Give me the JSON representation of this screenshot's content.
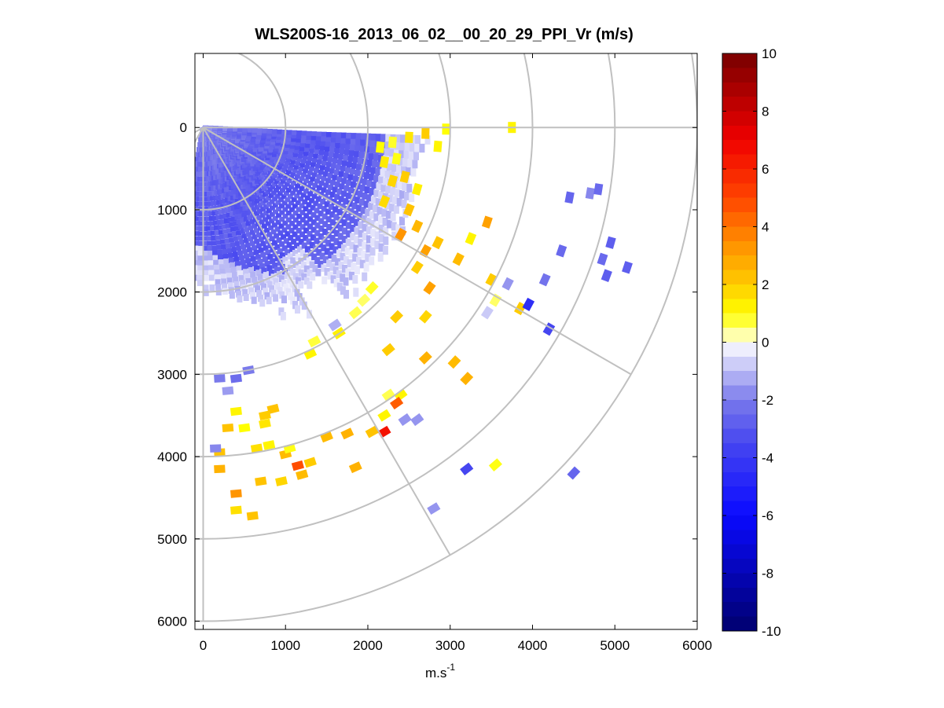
{
  "chart_data": {
    "type": "heatmap",
    "subtype": "polar-ppi-scan",
    "title": "WLS200S-16_2013_06_02__00_20_29_PPI_Vr (m/s)",
    "xlabel": "m.s",
    "xlabel_superscript": "-1",
    "ylabel": "",
    "xlim": [
      -100,
      6000
    ],
    "ylim": [
      -900,
      6100
    ],
    "y_axis_inverted": true,
    "x_ticks": [
      0,
      1000,
      2000,
      3000,
      4000,
      5000,
      6000
    ],
    "y_ticks": [
      0,
      1000,
      2000,
      3000,
      4000,
      5000,
      6000
    ],
    "grid": true,
    "polar_grid": {
      "origin": [
        0,
        0
      ],
      "ring_radii": [
        1000,
        2000,
        3000,
        4000,
        5000,
        6000
      ],
      "spoke_angles_deg": [
        -60,
        -30,
        0,
        30,
        60,
        90
      ]
    },
    "colorbar": {
      "label": "Vr (m/s)",
      "min": -10,
      "max": 10,
      "ticks": [
        10,
        8,
        6,
        4,
        2,
        0,
        -2,
        -4,
        -6,
        -8,
        -10
      ],
      "colormap": "blue-white-yellow-red",
      "colormap_stops": [
        {
          "v": -10,
          "color": "#00006e"
        },
        {
          "v": -6,
          "color": "#0a0aff"
        },
        {
          "v": -3.5,
          "color": "#4646f0"
        },
        {
          "v": -2,
          "color": "#7a7aeb"
        },
        {
          "v": 0,
          "color": "#ffffff"
        },
        {
          "v": 0.4,
          "color": "#ffff7a"
        },
        {
          "v": 1,
          "color": "#ffff00"
        },
        {
          "v": 2,
          "color": "#ffcc00"
        },
        {
          "v": 3.5,
          "color": "#ff8c00"
        },
        {
          "v": 5,
          "color": "#ff4400"
        },
        {
          "v": 7,
          "color": "#f00000"
        },
        {
          "v": 10,
          "color": "#780000"
        }
      ]
    },
    "dense_sector": {
      "range_min": 0,
      "range_max": 2850,
      "azimuth_start_deg": -10,
      "azimuth_end_deg": 87,
      "min_velocity": -3.3,
      "edge_velocity": -0.3
    },
    "cells": [
      [
        2150,
        240,
        1.0
      ],
      [
        2300,
        180,
        0.8
      ],
      [
        2500,
        120,
        1.5
      ],
      [
        2700,
        70,
        2.0
      ],
      [
        2850,
        230,
        1.2
      ],
      [
        2950,
        20,
        1.0
      ],
      [
        2200,
        420,
        1.4
      ],
      [
        2350,
        380,
        0.9
      ],
      [
        2450,
        600,
        2.0
      ],
      [
        2600,
        750,
        1.3
      ],
      [
        2300,
        650,
        1.8
      ],
      [
        2200,
        900,
        1.7
      ],
      [
        2500,
        1000,
        2.2
      ],
      [
        2400,
        1300,
        3.3
      ],
      [
        2600,
        1200,
        2.5
      ],
      [
        2700,
        1500,
        3.0
      ],
      [
        2850,
        1400,
        2.2
      ],
      [
        2600,
        1700,
        2.0
      ],
      [
        2750,
        1950,
        3.0
      ],
      [
        3450,
        1150,
        3.0
      ],
      [
        3250,
        1350,
        1.2
      ],
      [
        3100,
        1600,
        2.4
      ],
      [
        3750,
        0,
        1.2
      ],
      [
        3500,
        1850,
        2.0
      ],
      [
        3550,
        2100,
        0.5
      ],
      [
        3450,
        2250,
        -0.8
      ],
      [
        3700,
        1900,
        -1.6
      ],
      [
        4150,
        1850,
        -2.2
      ],
      [
        3850,
        2200,
        2.0
      ],
      [
        3950,
        2150,
        -4.5
      ],
      [
        4200,
        2450,
        -3.5
      ],
      [
        4350,
        1500,
        -2.5
      ],
      [
        4850,
        1600,
        -2.5
      ],
      [
        5150,
        1700,
        -2.8
      ],
      [
        4450,
        850,
        -2.6
      ],
      [
        4700,
        800,
        -1.8
      ],
      [
        4800,
        750,
        -2.5
      ],
      [
        4950,
        1400,
        -2.8
      ],
      [
        4900,
        1800,
        -2.8
      ],
      [
        2700,
        2300,
        1.8
      ],
      [
        2350,
        2300,
        2.0
      ],
      [
        2250,
        2700,
        2.0
      ],
      [
        2700,
        2800,
        2.6
      ],
      [
        3050,
        2850,
        2.4
      ],
      [
        3200,
        3050,
        2.6
      ],
      [
        2250,
        3250,
        0.6
      ],
      [
        2400,
        3250,
        1.2
      ],
      [
        2350,
        3350,
        4.5
      ],
      [
        2200,
        3500,
        1.2
      ],
      [
        2450,
        3550,
        -1.6
      ],
      [
        2600,
        3550,
        -1.6
      ],
      [
        2200,
        3700,
        6.5
      ],
      [
        2050,
        3700,
        2.2
      ],
      [
        1750,
        3720,
        2.6
      ],
      [
        1500,
        3760,
        2.4
      ],
      [
        3200,
        4150,
        -3.5
      ],
      [
        3550,
        4100,
        0.9
      ],
      [
        4500,
        4200,
        -2.6
      ],
      [
        2800,
        4630,
        -1.6
      ],
      [
        1850,
        4130,
        2.6
      ],
      [
        1300,
        4070,
        2.0
      ],
      [
        1150,
        4110,
        4.8
      ],
      [
        1000,
        3970,
        2.4
      ],
      [
        800,
        3860,
        1.2
      ],
      [
        650,
        3900,
        1.6
      ],
      [
        850,
        3420,
        2.2
      ],
      [
        750,
        3500,
        2.0
      ],
      [
        1050,
        3900,
        0.9
      ],
      [
        1200,
        4220,
        2.4
      ],
      [
        950,
        4300,
        1.8
      ],
      [
        700,
        4300,
        2.2
      ],
      [
        400,
        4450,
        3.3
      ],
      [
        400,
        4650,
        1.6
      ],
      [
        600,
        4720,
        2.2
      ],
      [
        200,
        3950,
        2.2
      ],
      [
        200,
        4150,
        2.6
      ],
      [
        300,
        3650,
        2.2
      ],
      [
        400,
        3450,
        1.2
      ],
      [
        500,
        3650,
        1.0
      ],
      [
        750,
        3600,
        1.5
      ],
      [
        150,
        3900,
        -1.8
      ],
      [
        200,
        3050,
        -2.0
      ],
      [
        400,
        3050,
        -2.4
      ],
      [
        300,
        3200,
        -1.5
      ],
      [
        550,
        2950,
        -2.0
      ],
      [
        1300,
        2750,
        1.2
      ],
      [
        1650,
        2500,
        1.3
      ],
      [
        1850,
        2250,
        0.6
      ],
      [
        1950,
        2100,
        0.5
      ],
      [
        2050,
        1950,
        0.8
      ],
      [
        1600,
        2400,
        -1.2
      ],
      [
        1350,
        2600,
        0.7
      ]
    ]
  }
}
